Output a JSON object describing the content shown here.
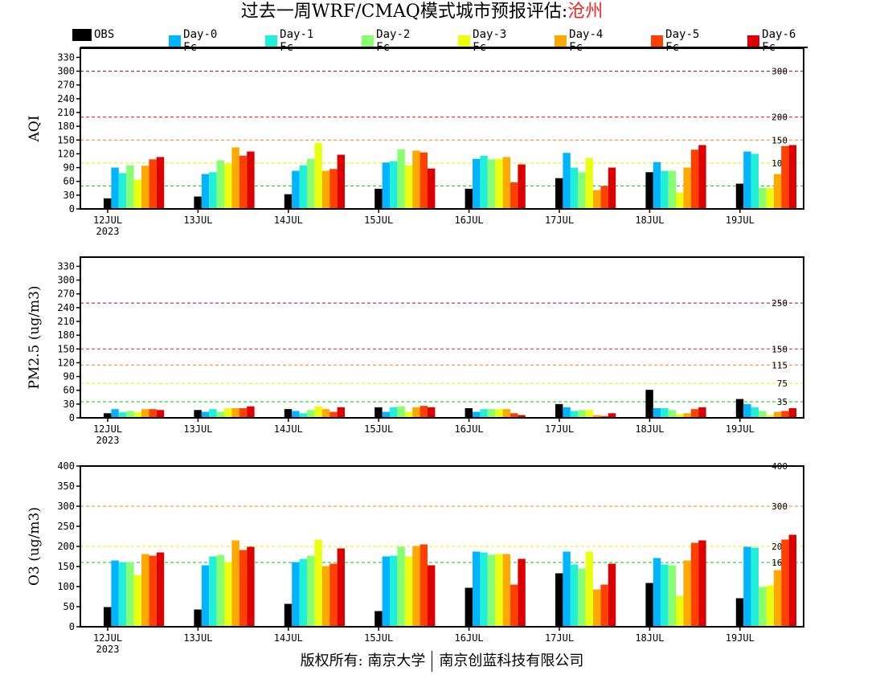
{
  "title": {
    "main": "过去一周WRF/CMAQ模式城市预报评估:",
    "city": "沧州"
  },
  "footer": {
    "left": "版权所有: 南京大学",
    "right": "南京创蓝科技有限公司"
  },
  "chart_data": {
    "type": "bar",
    "categories": [
      "12JUL",
      "13JUL",
      "14JUL",
      "15JUL",
      "16JUL",
      "17JUL",
      "18JUL",
      "19JUL"
    ],
    "year_label": "2023",
    "legend": [
      {
        "name": "OBS",
        "color": "#000000"
      },
      {
        "name": "Day-0 Fc",
        "color": "#00b4ff"
      },
      {
        "name": "Day-1 Fc",
        "color": "#20f0d8"
      },
      {
        "name": "Day-2 Fc",
        "color": "#88ff70"
      },
      {
        "name": "Day-3 Fc",
        "color": "#eaff10"
      },
      {
        "name": "Day-4 Fc",
        "color": "#ffa800"
      },
      {
        "name": "Day-5 Fc",
        "color": "#ff4000"
      },
      {
        "name": "Day-6 Fc",
        "color": "#dc0000"
      }
    ],
    "panels": [
      {
        "ylabel": "AQI",
        "ylim": [
          0,
          350
        ],
        "yticks": [
          0,
          30,
          60,
          90,
          120,
          150,
          180,
          210,
          240,
          270,
          300,
          330
        ],
        "thresholds": [
          {
            "value": 50,
            "label": "50",
            "color": "#00cc00"
          },
          {
            "value": 100,
            "label": "100",
            "color": "#eeee00"
          },
          {
            "value": 150,
            "label": "150",
            "color": "#f08020"
          },
          {
            "value": 200,
            "label": "200",
            "color": "#ff0000"
          },
          {
            "value": 300,
            "label": "300",
            "color": "#880044"
          }
        ],
        "series": [
          {
            "name": "OBS",
            "values": [
              23,
              27,
              32,
              44,
              44,
              67,
              80,
              55
            ]
          },
          {
            "name": "Day-0 Fc",
            "values": [
              90,
              76,
              83,
              101,
              109,
              122,
              102,
              125
            ]
          },
          {
            "name": "Day-1 Fc",
            "values": [
              78,
              80,
              95,
              104,
              116,
              90,
              83,
              120
            ]
          },
          {
            "name": "Day-2 Fc",
            "values": [
              95,
              106,
              109,
              130,
              108,
              80,
              83,
              46
            ]
          },
          {
            "name": "Day-3 Fc",
            "values": [
              64,
              99,
              144,
              95,
              109,
              111,
              36,
              46
            ]
          },
          {
            "name": "Day-4 Fc",
            "values": [
              94,
              134,
              83,
              127,
              113,
              41,
              90,
              76
            ]
          },
          {
            "name": "Day-5 Fc",
            "values": [
              108,
              116,
              87,
              123,
              58,
              50,
              129,
              137
            ]
          },
          {
            "name": "Day-6 Fc",
            "values": [
              113,
              125,
              118,
              88,
              97,
              90,
              139,
              139
            ]
          }
        ]
      },
      {
        "ylabel": "PM2.5 (ug/m3)",
        "ylim": [
          0,
          350
        ],
        "yticks": [
          0,
          30,
          60,
          90,
          120,
          150,
          180,
          210,
          240,
          270,
          300,
          330
        ],
        "thresholds": [
          {
            "value": 35,
            "label": "35",
            "color": "#00cc00"
          },
          {
            "value": 75,
            "label": "75",
            "color": "#eeee00"
          },
          {
            "value": 115,
            "label": "115",
            "color": "#f08020"
          },
          {
            "value": 150,
            "label": "150",
            "color": "#dd2020"
          },
          {
            "value": 250,
            "label": "250",
            "color": "#aa0055"
          }
        ],
        "series": [
          {
            "name": "OBS",
            "values": [
              10,
              17,
              19,
              23,
              21,
              30,
              61,
              41
            ]
          },
          {
            "name": "Day-0 Fc",
            "values": [
              19,
              13,
              15,
              13,
              13,
              23,
              21,
              30
            ]
          },
          {
            "name": "Day-1 Fc",
            "values": [
              12,
              19,
              10,
              23,
              19,
              15,
              21,
              23
            ]
          },
          {
            "name": "Day-2 Fc",
            "values": [
              15,
              13,
              17,
              25,
              19,
              17,
              17,
              15
            ]
          },
          {
            "name": "Day-3 Fc",
            "values": [
              12,
              21,
              25,
              13,
              19,
              17,
              8,
              6
            ]
          },
          {
            "name": "Day-4 Fc",
            "values": [
              19,
              21,
              19,
              23,
              19,
              6,
              10,
              13
            ]
          },
          {
            "name": "Day-5 Fc",
            "values": [
              19,
              21,
              13,
              26,
              10,
              4,
              19,
              15
            ]
          },
          {
            "name": "Day-6 Fc",
            "values": [
              17,
              25,
              23,
              23,
              6,
              10,
              23,
              21
            ]
          }
        ]
      },
      {
        "ylabel": "O3 (ug/m3)",
        "ylim": [
          0,
          400
        ],
        "yticks": [
          0,
          50,
          100,
          150,
          200,
          250,
          300,
          350,
          400
        ],
        "thresholds": [
          {
            "value": 160,
            "label": "160",
            "color": "#00cc00"
          },
          {
            "value": 200,
            "label": "200",
            "color": "#eeee00"
          },
          {
            "value": 300,
            "label": "300",
            "color": "#ff8800"
          },
          {
            "value": 400,
            "label": "400",
            "color": "#ff0000"
          }
        ],
        "series": [
          {
            "name": "OBS",
            "values": [
              49,
              43,
              57,
              39,
              97,
              133,
              109,
              71
            ]
          },
          {
            "name": "Day-0 Fc",
            "values": [
              165,
              153,
              161,
              175,
              187,
              187,
              171,
              199
            ]
          },
          {
            "name": "Day-1 Fc",
            "values": [
              161,
              175,
              169,
              177,
              185,
              155,
              155,
              197
            ]
          },
          {
            "name": "Day-2 Fc",
            "values": [
              161,
              179,
              177,
              199,
              179,
              145,
              153,
              99
            ]
          },
          {
            "name": "Day-3 Fc",
            "values": [
              129,
              161,
              217,
              175,
              181,
              187,
              77,
              103
            ]
          },
          {
            "name": "Day-4 Fc",
            "values": [
              181,
              215,
              151,
              201,
              181,
              93,
              165,
              141
            ]
          },
          {
            "name": "Day-5 Fc",
            "values": [
              177,
              191,
              157,
              205,
              105,
              105,
              209,
              217
            ]
          },
          {
            "name": "Day-6 Fc",
            "values": [
              185,
              199,
              195,
              153,
              169,
              157,
              215,
              229
            ]
          }
        ]
      }
    ]
  }
}
